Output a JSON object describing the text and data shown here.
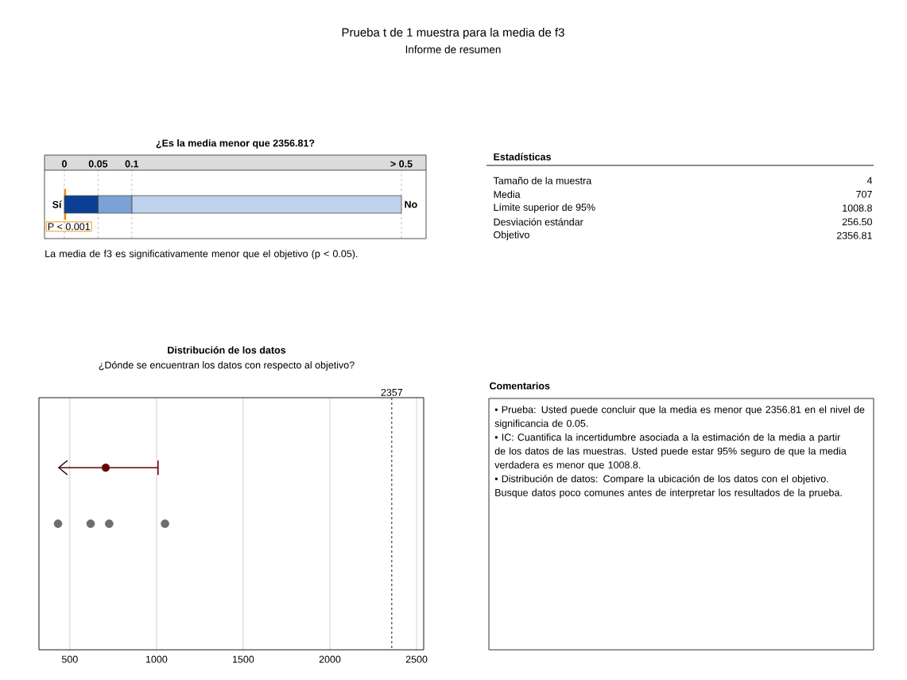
{
  "chart_data": [
    {
      "type": "other",
      "title": "Prueba t de 1 muestra para la media de f3",
      "subtitle": "Informe de resumen"
    },
    {
      "type": "bar",
      "title": "¿Es la media menor que 2356.81?",
      "orientation": "horizontal",
      "stacked": true,
      "categories": [
        null
      ],
      "series": [
        {
          "color": "#0a3f94",
          "values": [
            0.05
          ]
        },
        {
          "color": "#7ba2d6",
          "values": [
            0.05
          ]
        },
        {
          "color": "#bed2ed",
          "values": [
            0.4
          ]
        }
      ],
      "xlim": [
        0,
        0.5
      ],
      "xticks": [
        0,
        0.05,
        0.1,
        {
          "value": 0.5,
          "label": "> 0.5"
        }
      ],
      "grid": "x",
      "ref_lines": [
        {
          "axis": "x",
          "value": 0.001,
          "label": "P < 0.001",
          "color": "#f08c00"
        }
      ],
      "annotations": [
        "Sí",
        "No",
        "La media de f3 es significativamente menor que el objetivo (p < 0.05)."
      ]
    },
    {
      "type": "other",
      "title": "Estadísticas",
      "categories": [
        "Tamaño de la muestra",
        "Media",
        "Límite superior de 95%",
        "Desviación estándar",
        "Objetivo"
      ],
      "value_labels": [
        "4",
        "707",
        "1008.8",
        "256.50",
        "2356.81"
      ]
    },
    {
      "type": "scatter",
      "title": "Distribución de los datos",
      "subtitle": "¿Dónde se encuentran los datos con respecto al objetivo?",
      "orientation": "horizontal",
      "categories": [
        null,
        null,
        null,
        null,
        null,
        null,
        null,
        null,
        null
      ],
      "series": [
        {
          "type": "scatter",
          "color": "#6b0000",
          "values": [
            null,
            null,
            707,
            null,
            null,
            null,
            null,
            null,
            null
          ],
          "errors": [
            null,
            null,
            [
              436,
              1008.8
            ],
            null,
            null,
            null,
            null,
            null,
            null
          ]
        },
        {
          "type": "scatter",
          "color": "#6e6e6e",
          "values": [
            null,
            null,
            null,
            null,
            432,
            null,
            null,
            null,
            null
          ]
        },
        {
          "type": "scatter",
          "color": "#6e6e6e",
          "values": [
            null,
            null,
            null,
            null,
            620,
            null,
            null,
            null,
            null
          ]
        },
        {
          "type": "scatter",
          "color": "#6e6e6e",
          "values": [
            null,
            null,
            null,
            null,
            727,
            null,
            null,
            null,
            null
          ]
        },
        {
          "type": "scatter",
          "color": "#6e6e6e",
          "values": [
            null,
            null,
            null,
            null,
            1049,
            null,
            null,
            null,
            null
          ]
        }
      ],
      "xlim": [
        322,
        2541
      ],
      "xticks": [
        500,
        1000,
        1500,
        2000,
        2500
      ],
      "grid": "x",
      "tick_labels": "x",
      "marker": "circle",
      "ref_lines": [
        {
          "axis": "x",
          "value": 2356.81,
          "label": "2357",
          "line_style": "dashed"
        }
      ]
    },
    {
      "type": "other",
      "title": "Comentarios",
      "annotations": [
        "• Prueba: Usted puede concluir que la media es menor que 2356.81 en el nivel de significancia de 0.05.",
        "• IC: Cuantifica la incertidumbre asociada a la estimación de la media a partir de los datos de las muestras. Usted puede estar 95% seguro de que la media verdadera es menor que 1008.8.",
        "• Distribución de datos: Compare la ubicación de los datos con el objetivo. Busque datos poco comunes antes de interpretar los resultados de la prueba."
      ]
    }
  ]
}
